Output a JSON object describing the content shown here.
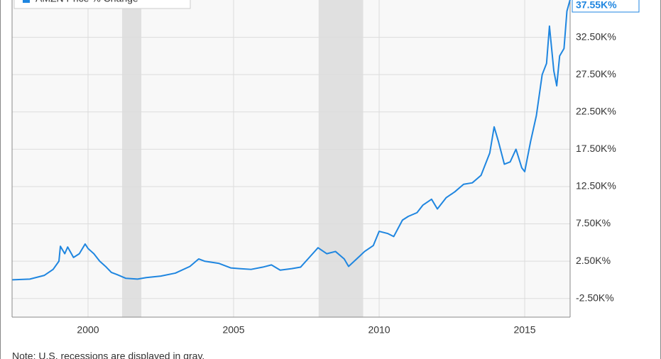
{
  "chart_data": {
    "type": "line",
    "note": "Note: U.S. recessions are displayed in gray.",
    "recessions": [
      [
        2001.17,
        2001.83
      ],
      [
        2007.92,
        2009.45
      ]
    ],
    "recession_color": "#e0e0e0",
    "series": [
      {
        "name": "AMZN Price % Change",
        "color": "#1f86e0",
        "x": [
          1997.4,
          1998.0,
          1998.5,
          1998.8,
          1999.0,
          1999.05,
          1999.2,
          1999.3,
          1999.5,
          1999.7,
          1999.9,
          2000.0,
          2000.2,
          2000.4,
          2000.6,
          2000.8,
          2001.0,
          2001.3,
          2001.7,
          2002.0,
          2002.5,
          2003.0,
          2003.5,
          2003.8,
          2004.0,
          2004.5,
          2004.9,
          2005.2,
          2005.6,
          2006.0,
          2006.3,
          2006.6,
          2007.0,
          2007.3,
          2007.6,
          2007.9,
          2008.2,
          2008.5,
          2008.8,
          2008.95,
          2009.2,
          2009.5,
          2009.8,
          2010.0,
          2010.3,
          2010.5,
          2010.8,
          2011.0,
          2011.3,
          2011.5,
          2011.8,
          2012.0,
          2012.3,
          2012.6,
          2012.9,
          2013.2,
          2013.5,
          2013.8,
          2013.95,
          2014.1,
          2014.3,
          2014.5,
          2014.7,
          2014.9,
          2015.0,
          2015.2,
          2015.4,
          2015.6,
          2015.75,
          2015.85,
          2016.0,
          2016.1,
          2016.2,
          2016.35,
          2016.45,
          2016.56
        ],
        "values": [
          0,
          100,
          600,
          1400,
          2500,
          4500,
          3500,
          4400,
          3000,
          3500,
          4800,
          4200,
          3500,
          2500,
          1800,
          1000,
          700,
          200,
          100,
          300,
          500,
          900,
          1800,
          2800,
          2500,
          2200,
          1600,
          1500,
          1400,
          1700,
          2000,
          1300,
          1500,
          1700,
          3000,
          4300,
          3500,
          3800,
          2800,
          1800,
          2700,
          3800,
          4600,
          6500,
          6200,
          5800,
          8000,
          8500,
          9000,
          10000,
          10800,
          9500,
          11000,
          11800,
          12800,
          13000,
          14000,
          17000,
          20500,
          18500,
          15500,
          15800,
          17500,
          15000,
          14500,
          18500,
          22000,
          27500,
          29000,
          34000,
          28000,
          26000,
          30000,
          31000,
          36000,
          37550
        ],
        "value_labels": [
          null,
          null,
          null,
          null,
          null,
          null,
          null,
          null,
          null,
          null,
          null,
          null,
          null,
          null,
          null,
          null,
          null,
          null,
          null,
          null,
          null,
          null,
          null,
          null,
          null,
          null,
          null,
          null,
          null,
          null,
          null,
          null,
          null,
          null,
          null,
          null,
          null,
          null,
          null,
          null,
          null,
          null,
          null,
          null,
          null,
          null,
          null,
          null,
          null,
          null,
          null,
          null,
          null,
          null,
          null,
          null,
          null,
          null,
          null,
          null,
          null,
          null,
          null,
          null,
          null,
          null,
          null,
          null,
          null,
          null,
          null,
          null,
          null,
          null,
          null,
          "37.55K%"
        ]
      }
    ],
    "xlim": [
      1997.39,
      2016.56
    ],
    "xticks": [
      2000,
      2005,
      2010,
      2015
    ],
    "ylim": [
      -5000,
      37500
    ],
    "yticks": [
      {
        "value": -2500,
        "label": "-2.50K%"
      },
      {
        "value": 2500,
        "label": "2.50K%"
      },
      {
        "value": 7500,
        "label": "7.50K%"
      },
      {
        "value": 12500,
        "label": "12.50K%"
      },
      {
        "value": 17500,
        "label": "17.50K%"
      },
      {
        "value": 22500,
        "label": "22.50K%"
      },
      {
        "value": 27500,
        "label": "27.50K%"
      },
      {
        "value": 32500,
        "label": "32.50K%"
      }
    ],
    "grid": true
  }
}
